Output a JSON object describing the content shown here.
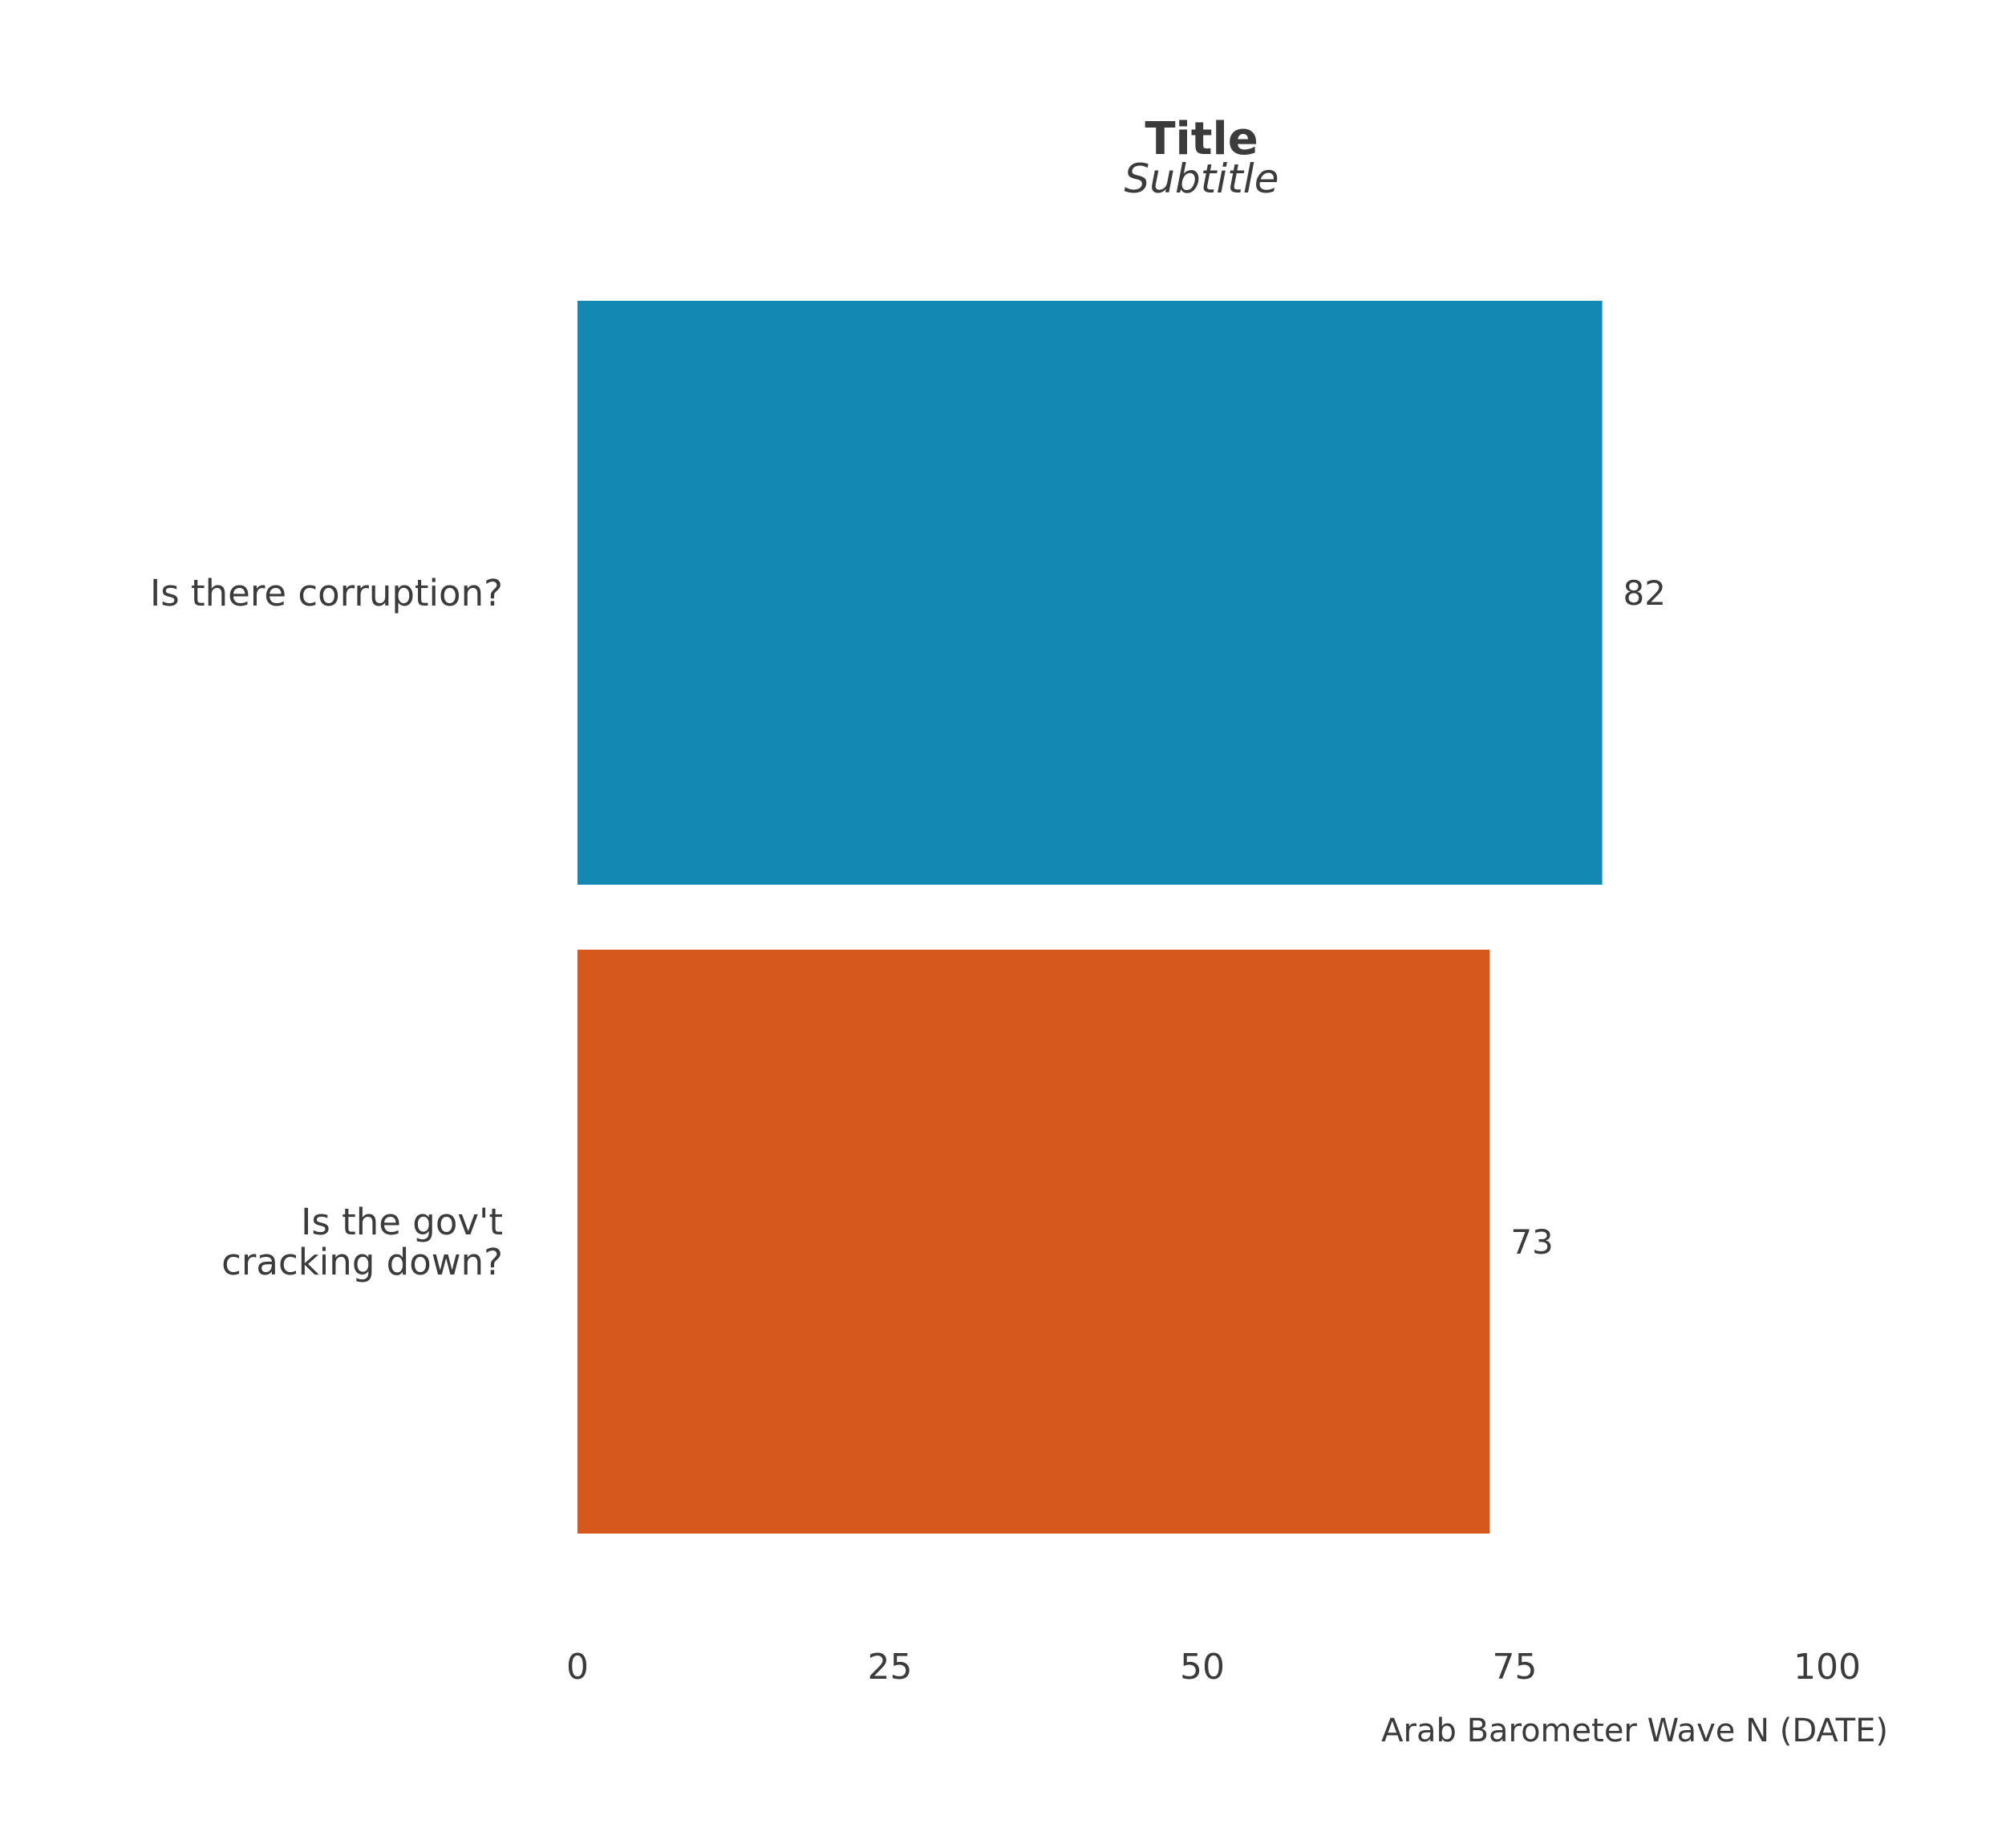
{
  "chart_data": {
    "type": "bar",
    "orientation": "horizontal",
    "title": "Title",
    "subtitle": "Subtitle",
    "caption": "Arab Barometer Wave N (DATE)",
    "categories": [
      [
        "Is there corruption?"
      ],
      [
        "Is the gov't",
        "cracking down?"
      ]
    ],
    "values": [
      82,
      73
    ],
    "colors": [
      "#1288b3",
      "#d6581c"
    ],
    "xlim": [
      0,
      100
    ],
    "xticks": [
      "0",
      "25",
      "50",
      "75",
      "100"
    ],
    "grid": false,
    "legend": "none"
  }
}
